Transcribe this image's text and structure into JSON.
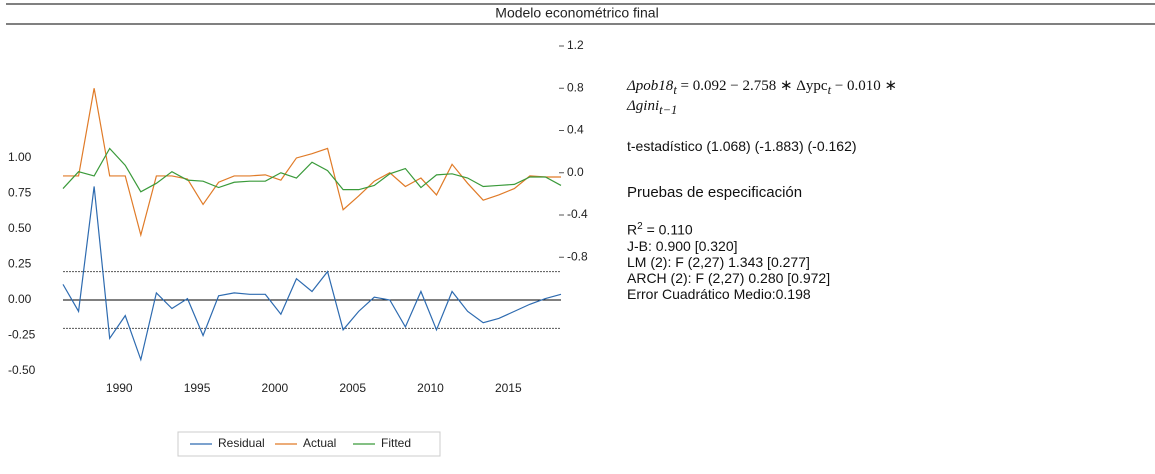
{
  "chart_data": {
    "type": "line",
    "title": "Modelo econométrico final",
    "x": [
      1986,
      1987,
      1988,
      1989,
      1990,
      1991,
      1992,
      1993,
      1994,
      1995,
      1996,
      1997,
      1998,
      1999,
      2000,
      2001,
      2002,
      2003,
      2004,
      2005,
      2006,
      2007,
      2008,
      2009,
      2010,
      2011,
      2012,
      2013,
      2014,
      2015,
      2016,
      2017,
      2018
    ],
    "xlim": [
      1986,
      2018
    ],
    "xticks": [
      1990,
      1995,
      2000,
      2005,
      2010,
      2015
    ],
    "ylim": [
      -0.5,
      1.0
    ],
    "yticks": [
      {
        "value": 1.0,
        "label": "1.00"
      },
      {
        "value": 0.75,
        "label": "0.75"
      },
      {
        "value": 0.5,
        "label": "0.50"
      },
      {
        "value": 0.25,
        "label": "0.25"
      },
      {
        "value": 0.0,
        "label": "0.00"
      },
      {
        "value": -0.25,
        "label": "-0.25"
      },
      {
        "value": -0.5,
        "label": "-0.50"
      }
    ],
    "y2lim": [
      -1.2,
      1.2
    ],
    "y2ticks": [
      {
        "value": 1.2,
        "label": "1.2"
      },
      {
        "value": 0.8,
        "label": "0.8"
      },
      {
        "value": 0.4,
        "label": "0.4"
      },
      {
        "value": 0.0,
        "label": "0.0"
      },
      {
        "value": -0.4,
        "label": "-0.4"
      },
      {
        "value": -0.8,
        "label": "-0.8"
      }
    ],
    "residual_band": [
      -0.2,
      0.2
    ],
    "series": [
      {
        "name": "Residual",
        "color": "#2e6bb0",
        "values": [
          0.11,
          -0.08,
          0.8,
          -0.27,
          -0.11,
          -0.42,
          0.05,
          -0.06,
          0.01,
          -0.25,
          0.03,
          0.05,
          0.04,
          0.04,
          -0.1,
          0.15,
          0.06,
          0.2,
          -0.21,
          -0.08,
          0.02,
          0.0,
          -0.19,
          0.06,
          -0.21,
          0.06,
          -0.08,
          -0.16,
          -0.13,
          -0.08,
          -0.03,
          0.01,
          0.04
        ]
      },
      {
        "name": "Actual",
        "color": "#e07b28",
        "axis": "y2",
        "values": [
          -0.03,
          -0.03,
          0.8,
          -0.03,
          -0.03,
          -0.59,
          -0.03,
          -0.03,
          -0.06,
          -0.3,
          -0.09,
          -0.03,
          -0.03,
          -0.02,
          -0.07,
          0.14,
          0.18,
          0.23,
          -0.35,
          -0.22,
          -0.08,
          0.0,
          -0.13,
          -0.05,
          -0.21,
          0.08,
          -0.1,
          -0.26,
          -0.21,
          -0.15,
          -0.03,
          -0.04,
          -0.04
        ]
      },
      {
        "name": "Fitted",
        "color": "#3a9a3a",
        "axis": "y2",
        "values": [
          -0.15,
          0.01,
          -0.03,
          0.23,
          0.07,
          -0.18,
          -0.1,
          0.01,
          -0.07,
          -0.08,
          -0.14,
          -0.09,
          -0.08,
          -0.08,
          0.0,
          -0.05,
          0.1,
          0.02,
          -0.16,
          -0.16,
          -0.12,
          -0.01,
          0.04,
          -0.14,
          -0.02,
          -0.01,
          -0.05,
          -0.13,
          -0.12,
          -0.11,
          -0.04,
          -0.04,
          -0.12
        ]
      }
    ]
  },
  "panel": {
    "equation": [
      "Δpob18",
      "t",
      " = 0.092 − 2.758 ∗ Δypc",
      "t",
      " − 0.010 ∗",
      "Δgini",
      "t−1"
    ],
    "t_stat": "t-estadístico (1.068) (-1.883) (-0.162)",
    "heading": "Pruebas de especificación",
    "r2": [
      "R",
      "2",
      " = 0.110"
    ],
    "tests": [
      "J-B: 0.900 [0.320]",
      "LM (2): F (2,27) 1.343 [0.277]",
      "ARCH (2): F (2,27) 0.280 [0.972]",
      "Error Cuadrático Medio:0.198"
    ]
  }
}
